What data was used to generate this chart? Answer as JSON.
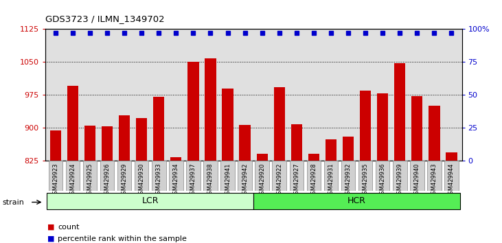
{
  "title": "GDS3723 / ILMN_1349702",
  "samples": [
    "GSM429923",
    "GSM429924",
    "GSM429925",
    "GSM429926",
    "GSM429929",
    "GSM429930",
    "GSM429933",
    "GSM429934",
    "GSM429937",
    "GSM429938",
    "GSM429941",
    "GSM429942",
    "GSM429920",
    "GSM429922",
    "GSM429927",
    "GSM429928",
    "GSM429931",
    "GSM429932",
    "GSM429935",
    "GSM429936",
    "GSM429939",
    "GSM429940",
    "GSM429943",
    "GSM429944"
  ],
  "counts": [
    893,
    996,
    905,
    903,
    928,
    921,
    970,
    832,
    1050,
    1058,
    990,
    906,
    840,
    993,
    907,
    840,
    873,
    880,
    985,
    978,
    1048,
    972,
    950,
    843
  ],
  "dot_percentile": 97,
  "groups": [
    {
      "label": "LCR",
      "start": 0,
      "end": 11,
      "color": "#ccffcc"
    },
    {
      "label": "HCR",
      "start": 12,
      "end": 23,
      "color": "#55ee55"
    }
  ],
  "bar_color": "#cc0000",
  "dot_color": "#0000cc",
  "ylim_left": [
    825,
    1125
  ],
  "ylim_right": [
    0,
    100
  ],
  "yticks_left": [
    825,
    900,
    975,
    1050,
    1125
  ],
  "yticks_right": [
    0,
    25,
    50,
    75,
    100
  ],
  "ylabel_left_color": "#cc0000",
  "ylabel_right_color": "#0000cc",
  "legend_count_label": "count",
  "legend_pct_label": "percentile rank within the sample",
  "strain_label": "strain",
  "plot_bg": "#e0e0e0",
  "tick_label_bg": "#d0d0d0"
}
